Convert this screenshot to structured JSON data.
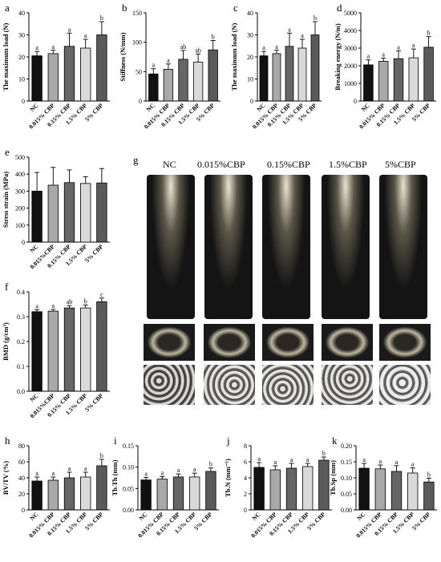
{
  "ct_panel": {
    "letter": "g",
    "groups": [
      "NC",
      "0.015%CBP",
      "0.15%CBP",
      "1.5%CBP",
      "5%CBP"
    ]
  },
  "chart_data": [
    {
      "panel": "a",
      "type": "bar",
      "ylabel": "The maximum load (N)",
      "categories": [
        "NC",
        "0.015% CBP",
        "0.15% CBP",
        "1.5% CBP",
        "5% CBP"
      ],
      "values": [
        20.5,
        21.5,
        24.8,
        24.0,
        30.0
      ],
      "errors": [
        2.0,
        1.5,
        6.0,
        4.0,
        6.0
      ],
      "letters": [
        "a",
        "a",
        "a",
        "a",
        "b"
      ],
      "ylim": [
        0,
        40
      ],
      "yticks": [
        0,
        10,
        20,
        30,
        40
      ]
    },
    {
      "panel": "b",
      "type": "bar",
      "ylabel": "Stiffness (N/mm)",
      "categories": [
        "NC",
        "0.015% CBP",
        "0.15% CBP",
        "1.5% CBP",
        "5% CBP"
      ],
      "values": [
        46,
        54,
        71,
        66,
        87
      ],
      "errors": [
        9,
        9,
        15,
        14,
        16
      ],
      "letters": [
        "a",
        "a",
        "ab",
        "ab",
        "b"
      ],
      "ylim": [
        0,
        150
      ],
      "yticks": [
        0,
        50,
        100,
        150
      ]
    },
    {
      "panel": "c",
      "type": "bar",
      "ylabel": "The maximum load (N)",
      "categories": [
        "NC",
        "0.015% CBP",
        "0.15% CBP",
        "1.5% CBP",
        "5% CBP"
      ],
      "values": [
        20.5,
        21.5,
        24.8,
        24.0,
        30.0
      ],
      "errors": [
        2.0,
        1.5,
        6.0,
        4.0,
        6.0
      ],
      "letters": [
        "a",
        "a",
        "a",
        "a",
        "b"
      ],
      "ylim": [
        0,
        40
      ],
      "yticks": [
        0,
        10,
        20,
        30,
        40
      ]
    },
    {
      "panel": "d",
      "type": "bar",
      "ylabel": "Breaking energy (N/m)",
      "categories": [
        "NC",
        "0.015% CBP",
        "0.15% CBP",
        "1.5% CBP",
        "5% CBP"
      ],
      "values": [
        2050,
        2250,
        2400,
        2450,
        3050
      ],
      "errors": [
        280,
        180,
        450,
        500,
        600
      ],
      "letters": [
        "a",
        "a",
        "a",
        "a",
        "b"
      ],
      "ylim": [
        0,
        5000
      ],
      "yticks": [
        0,
        1000,
        2000,
        3000,
        4000,
        5000
      ]
    },
    {
      "panel": "e",
      "type": "bar",
      "ylabel": "Stress strain (MPa)",
      "categories": [
        "NC",
        "0.015%CBP",
        "0.15% CBP",
        "1.5% CBP",
        "5% CBP"
      ],
      "values": [
        300,
        335,
        350,
        345,
        348
      ],
      "errors": [
        110,
        105,
        75,
        40,
        85
      ],
      "letters": [],
      "ylim": [
        0,
        500
      ],
      "yticks": [
        0,
        100,
        200,
        300,
        400,
        500
      ]
    },
    {
      "panel": "f",
      "type": "bar",
      "ylabel": "BMD (g/cm³)",
      "categories": [
        "NC",
        "0.015%CBP",
        "0.15% CBP",
        "1.5% CBP",
        "5% CBP"
      ],
      "values": [
        0.32,
        0.322,
        0.335,
        0.335,
        0.36
      ],
      "errors": [
        0.008,
        0.007,
        0.01,
        0.012,
        0.015
      ],
      "letters": [
        "a",
        "a",
        "ab",
        "b",
        "c"
      ],
      "ylim": [
        0,
        0.4
      ],
      "yticks": [
        0.0,
        0.1,
        0.2,
        0.3,
        0.4
      ]
    },
    {
      "panel": "h",
      "type": "bar",
      "ylabel": "BV/TV (%)",
      "categories": [
        "NC",
        "0.015% CBP",
        "0.15% CBP",
        "1.5% CBP",
        "5% CBP"
      ],
      "values": [
        36,
        37,
        40,
        41,
        55
      ],
      "errors": [
        5,
        4,
        7,
        6,
        8
      ],
      "letters": [
        "a",
        "a",
        "a",
        "a",
        "b"
      ],
      "ylim": [
        0,
        80
      ],
      "yticks": [
        0,
        20,
        40,
        60,
        80
      ]
    },
    {
      "panel": "i",
      "type": "bar",
      "ylabel": "Tb.Th (mm)",
      "categories": [
        "NC",
        "0.015% CBP",
        "0.15% CBP",
        "1.5% CBP",
        "5% CBP"
      ],
      "values": [
        0.07,
        0.072,
        0.077,
        0.077,
        0.09
      ],
      "errors": [
        0.006,
        0.006,
        0.007,
        0.009,
        0.008
      ],
      "letters": [
        "a",
        "a",
        "a",
        "a",
        "b"
      ],
      "ylim": [
        0,
        0.15
      ],
      "yticks": [
        0.0,
        0.05,
        0.1,
        0.15
      ]
    },
    {
      "panel": "j",
      "type": "bar",
      "ylabel": "Tb.N (mm⁻¹)",
      "categories": [
        "NC",
        "0.015% CBP",
        "0.15% CBP",
        "1.5% CBP",
        "5% CBP"
      ],
      "values": [
        5.3,
        5.0,
        5.2,
        5.4,
        6.2
      ],
      "errors": [
        0.6,
        0.5,
        0.6,
        0.4,
        0.4
      ],
      "letters": [
        "a",
        "a",
        "a",
        "a",
        "b"
      ],
      "ylim": [
        0,
        8
      ],
      "yticks": [
        0,
        2,
        4,
        6,
        8
      ]
    },
    {
      "panel": "k",
      "type": "bar",
      "ylabel": "Tb.Sp (mm)",
      "categories": [
        "NC",
        "0.015% CBP",
        "0.15% CBP",
        "1.5% CBP",
        "5% CBP"
      ],
      "values": [
        0.13,
        0.128,
        0.12,
        0.115,
        0.087
      ],
      "errors": [
        0.015,
        0.012,
        0.018,
        0.016,
        0.012
      ],
      "letters": [
        "a",
        "a",
        "a",
        "a",
        "b"
      ],
      "ylim": [
        0,
        0.2
      ],
      "yticks": [
        0.0,
        0.05,
        0.1,
        0.15,
        0.2
      ]
    }
  ]
}
